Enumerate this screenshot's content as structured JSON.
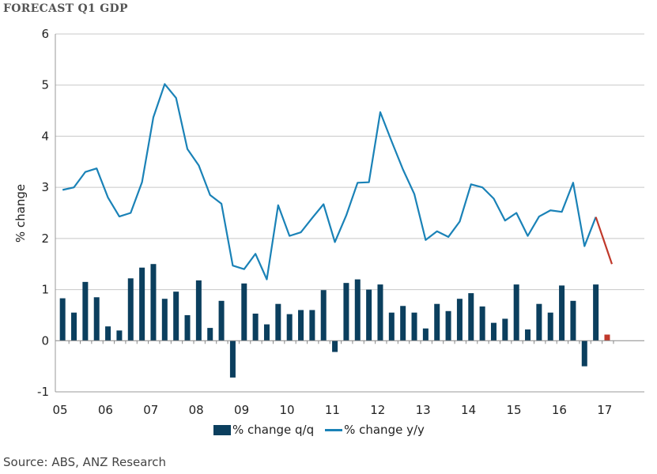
{
  "title": "FORECAST Q1 GDP",
  "source": "Source: ABS, ANZ Research",
  "colors": {
    "bars": "#0b3f5e",
    "line": "#1a82b7",
    "forecast": "#c0392b",
    "grid": "#c8c8c8"
  },
  "chart_data": {
    "type": "bar+line",
    "title": "FORECAST Q1 GDP",
    "ylabel": "% change",
    "ylim": [
      -1,
      6
    ],
    "yticks": [
      "-1",
      "0",
      "1",
      "2",
      "3",
      "4",
      "5",
      "6"
    ],
    "x_start_year": 2005,
    "xticks": [
      "05",
      "06",
      "07",
      "08",
      "09",
      "10",
      "11",
      "12",
      "13",
      "14",
      "15",
      "16",
      "17"
    ],
    "legend": [
      "% change q/q",
      "% change y/y"
    ],
    "series": [
      {
        "name": "% change q/q",
        "kind": "bar",
        "values": [
          0.83,
          0.55,
          1.15,
          0.85,
          0.28,
          0.2,
          1.22,
          1.43,
          1.5,
          0.82,
          0.96,
          0.5,
          1.18,
          0.25,
          0.78,
          -0.72,
          1.12,
          0.53,
          0.32,
          0.72,
          0.52,
          0.6,
          0.6,
          0.99,
          -0.22,
          1.13,
          1.2,
          1.0,
          1.1,
          0.55,
          0.68,
          0.55,
          0.24,
          0.72,
          0.58,
          0.82,
          0.93,
          0.67,
          0.35,
          0.43,
          1.1,
          0.22,
          0.72,
          0.55,
          1.08,
          0.78,
          -0.5,
          1.1
        ],
        "forecast": 0.12
      },
      {
        "name": "% change y/y",
        "kind": "line",
        "values": [
          2.95,
          3.0,
          3.3,
          3.37,
          2.8,
          2.43,
          2.5,
          3.1,
          4.37,
          5.02,
          4.75,
          3.75,
          3.43,
          2.85,
          2.68,
          1.47,
          1.4,
          1.7,
          1.2,
          2.65,
          2.05,
          2.12,
          2.4,
          2.67,
          1.93,
          2.45,
          3.09,
          3.1,
          4.47,
          3.9,
          3.35,
          2.87,
          1.97,
          2.14,
          2.03,
          2.33,
          3.06,
          3.0,
          2.78,
          2.35,
          2.5,
          2.05,
          2.43,
          2.55,
          2.52,
          3.09,
          1.85,
          2.42
        ],
        "forecast": 1.5
      }
    ]
  }
}
